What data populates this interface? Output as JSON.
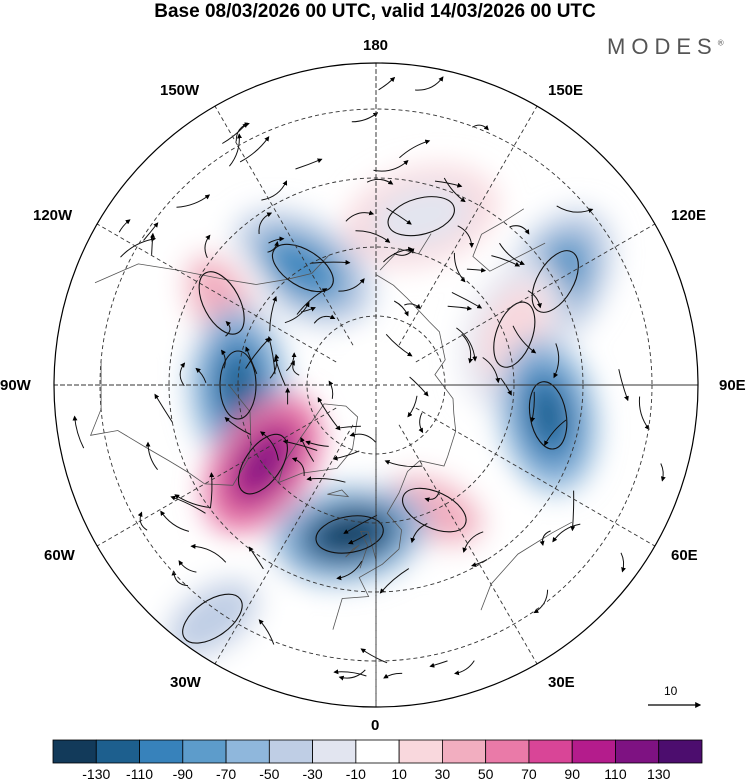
{
  "title": "Base 08/03/2026 00 UTC, valid 14/03/2026 00 UTC",
  "brand": "MODES",
  "brand_mark": "®",
  "longitude_labels": {
    "lon_180": "180",
    "lon_150e": "150E",
    "lon_120e": "120E",
    "lon_90e": "90E",
    "lon_60e": "60E",
    "lon_30e": "30E",
    "lon_0": "0",
    "lon_30w": "30W",
    "lon_60w": "60W",
    "lon_90w": "90W",
    "lon_120w": "120W",
    "lon_150w": "150W"
  },
  "reference_vector_label": "10",
  "colorbar": {
    "labels": [
      "-130",
      "-110",
      "-90",
      "-70",
      "-50",
      "-30",
      "-10",
      "10",
      "30",
      "50",
      "70",
      "90",
      "110",
      "130"
    ],
    "colors": [
      "#123a5a",
      "#1d5f8e",
      "#3782bb",
      "#5d9ccb",
      "#8fb7dc",
      "#bfcee5",
      "#e2e5f0",
      "#ffffff",
      "#f9d8dd",
      "#f2aec0",
      "#ea7aa8",
      "#d94597",
      "#b41c8c",
      "#7e1282",
      "#4c0d6e"
    ]
  },
  "palette": {
    "blue_strong": "#1d5f8e",
    "blue_mid": "#5d9ccb",
    "pink_mid": "#ea7aa8",
    "purple": "#7e1282",
    "grid": "#333333"
  },
  "anomaly_centers": [
    {
      "lon": 165,
      "lat": 52,
      "level": 5
    },
    {
      "lon": -148,
      "lat": 60,
      "level": 2
    },
    {
      "lon": 120,
      "lat": 45,
      "level": 2
    },
    {
      "lon": -118,
      "lat": 52,
      "level": 10
    },
    {
      "lon": 110,
      "lat": 58,
      "level": 9
    },
    {
      "lon": -90,
      "lat": 60,
      "level": 1
    },
    {
      "lon": 80,
      "lat": 52,
      "level": 1
    },
    {
      "lon": -55,
      "lat": 60,
      "level": 13
    },
    {
      "lon": 25,
      "lat": 60,
      "level": 10
    },
    {
      "lon": -10,
      "lat": 57,
      "level": 0
    },
    {
      "lon": -35,
      "lat": 28,
      "level": 4
    }
  ]
}
